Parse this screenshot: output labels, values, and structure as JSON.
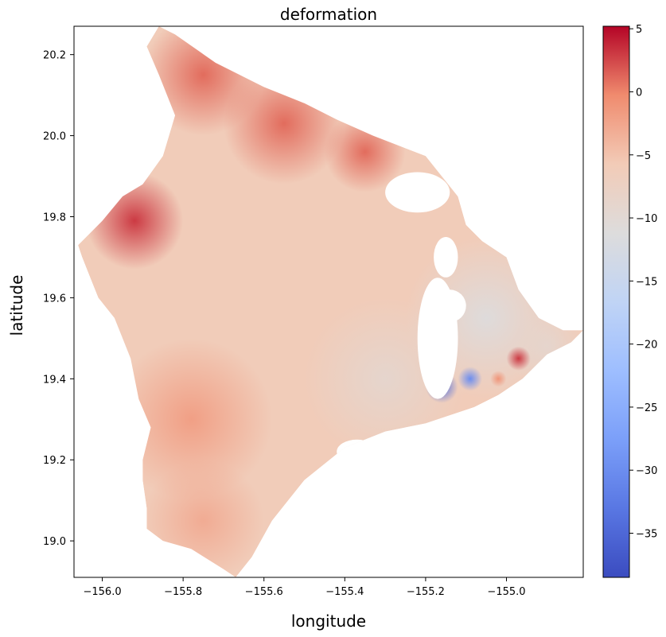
{
  "chart_data": {
    "type": "heatmap",
    "title": "deformation",
    "xlabel": "longitude",
    "ylabel": "latitude",
    "xlim": [
      -156.07,
      -154.81
    ],
    "ylim": [
      18.91,
      20.27
    ],
    "xticks": [
      -156.0,
      -155.8,
      -155.6,
      -155.4,
      -155.2,
      -155.0
    ],
    "xtick_labels": [
      "−156.0",
      "−155.8",
      "−155.6",
      "−155.4",
      "−155.2",
      "−155.0"
    ],
    "yticks": [
      19.0,
      19.2,
      19.4,
      19.6,
      19.8,
      20.0,
      20.2
    ],
    "ytick_labels": [
      "19.0",
      "19.2",
      "19.4",
      "19.6",
      "19.8",
      "20.0",
      "20.2"
    ],
    "colorbar": {
      "colormap": "coolwarm",
      "range": [
        -38.5,
        5.2
      ],
      "ticks": [
        5,
        0,
        -5,
        -10,
        -15,
        -20,
        -25,
        -30,
        -35
      ],
      "tick_labels": [
        "5",
        "0",
        "−5",
        "−10",
        "−15",
        "−20",
        "−25",
        "−30",
        "−35"
      ]
    },
    "outline": [
      [
        -155.86,
        20.27
      ],
      [
        -155.82,
        20.25
      ],
      [
        -155.72,
        20.18
      ],
      [
        -155.6,
        20.12
      ],
      [
        -155.5,
        20.08
      ],
      [
        -155.42,
        20.04
      ],
      [
        -155.33,
        20.0
      ],
      [
        -155.2,
        19.95
      ],
      [
        -155.12,
        19.85
      ],
      [
        -155.1,
        19.78
      ],
      [
        -155.06,
        19.74
      ],
      [
        -155.0,
        19.7
      ],
      [
        -154.97,
        19.62
      ],
      [
        -154.92,
        19.55
      ],
      [
        -154.86,
        19.52
      ],
      [
        -154.81,
        19.52
      ],
      [
        -154.84,
        19.49
      ],
      [
        -154.9,
        19.46
      ],
      [
        -154.96,
        19.4
      ],
      [
        -155.02,
        19.36
      ],
      [
        -155.08,
        19.33
      ],
      [
        -155.2,
        19.29
      ],
      [
        -155.3,
        19.27
      ],
      [
        -155.4,
        19.23
      ],
      [
        -155.5,
        19.15
      ],
      [
        -155.58,
        19.05
      ],
      [
        -155.63,
        18.96
      ],
      [
        -155.67,
        18.91
      ],
      [
        -155.7,
        18.93
      ],
      [
        -155.78,
        18.98
      ],
      [
        -155.85,
        19.0
      ],
      [
        -155.89,
        19.03
      ],
      [
        -155.89,
        19.08
      ],
      [
        -155.9,
        19.15
      ],
      [
        -155.9,
        19.2
      ],
      [
        -155.88,
        19.28
      ],
      [
        -155.91,
        19.35
      ],
      [
        -155.93,
        19.45
      ],
      [
        -155.97,
        19.55
      ],
      [
        -156.01,
        19.6
      ],
      [
        -156.03,
        19.65
      ],
      [
        -156.05,
        19.7
      ],
      [
        -156.06,
        19.73
      ],
      [
        -156.0,
        19.79
      ],
      [
        -155.95,
        19.85
      ],
      [
        -155.9,
        19.88
      ],
      [
        -155.85,
        19.95
      ],
      [
        -155.82,
        20.05
      ],
      [
        -155.86,
        20.15
      ],
      [
        -155.89,
        20.22
      ],
      [
        -155.86,
        20.27
      ]
    ],
    "background_value": -6,
    "hotspots": [
      {
        "lon": -155.92,
        "lat": 19.79,
        "value": 3,
        "radius": 0.12
      },
      {
        "lon": -155.75,
        "lat": 20.15,
        "value": 1,
        "radius": 0.15
      },
      {
        "lon": -155.55,
        "lat": 20.03,
        "value": 1,
        "radius": 0.15
      },
      {
        "lon": -155.35,
        "lat": 19.96,
        "value": 1,
        "radius": 0.1
      },
      {
        "lon": -155.78,
        "lat": 19.3,
        "value": -2,
        "radius": 0.2
      },
      {
        "lon": -155.75,
        "lat": 19.05,
        "value": -3,
        "radius": 0.15
      },
      {
        "lon": -155.3,
        "lat": 19.4,
        "value": -9,
        "radius": 0.2
      },
      {
        "lon": -155.05,
        "lat": 19.55,
        "value": -11,
        "radius": 0.2
      },
      {
        "lon": -154.9,
        "lat": 19.48,
        "value": -9,
        "radius": 0.1
      },
      {
        "lon": -155.16,
        "lat": 19.38,
        "value": -34,
        "radius": 0.04
      },
      {
        "lon": -155.09,
        "lat": 19.4,
        "value": -30,
        "radius": 0.03
      },
      {
        "lon": -154.97,
        "lat": 19.45,
        "value": 3,
        "radius": 0.03
      },
      {
        "lon": -155.02,
        "lat": 19.4,
        "value": -1,
        "radius": 0.02
      }
    ],
    "holes": [
      {
        "lon": -155.17,
        "lat": 19.5,
        "rx": 0.05,
        "ry": 0.15
      },
      {
        "lon": -155.22,
        "lat": 19.86,
        "rx": 0.08,
        "ry": 0.05
      },
      {
        "lon": -155.15,
        "lat": 19.7,
        "rx": 0.03,
        "ry": 0.05
      },
      {
        "lon": -155.37,
        "lat": 19.22,
        "rx": 0.05,
        "ry": 0.03
      },
      {
        "lon": -155.14,
        "lat": 19.58,
        "rx": 0.04,
        "ry": 0.04
      }
    ]
  }
}
